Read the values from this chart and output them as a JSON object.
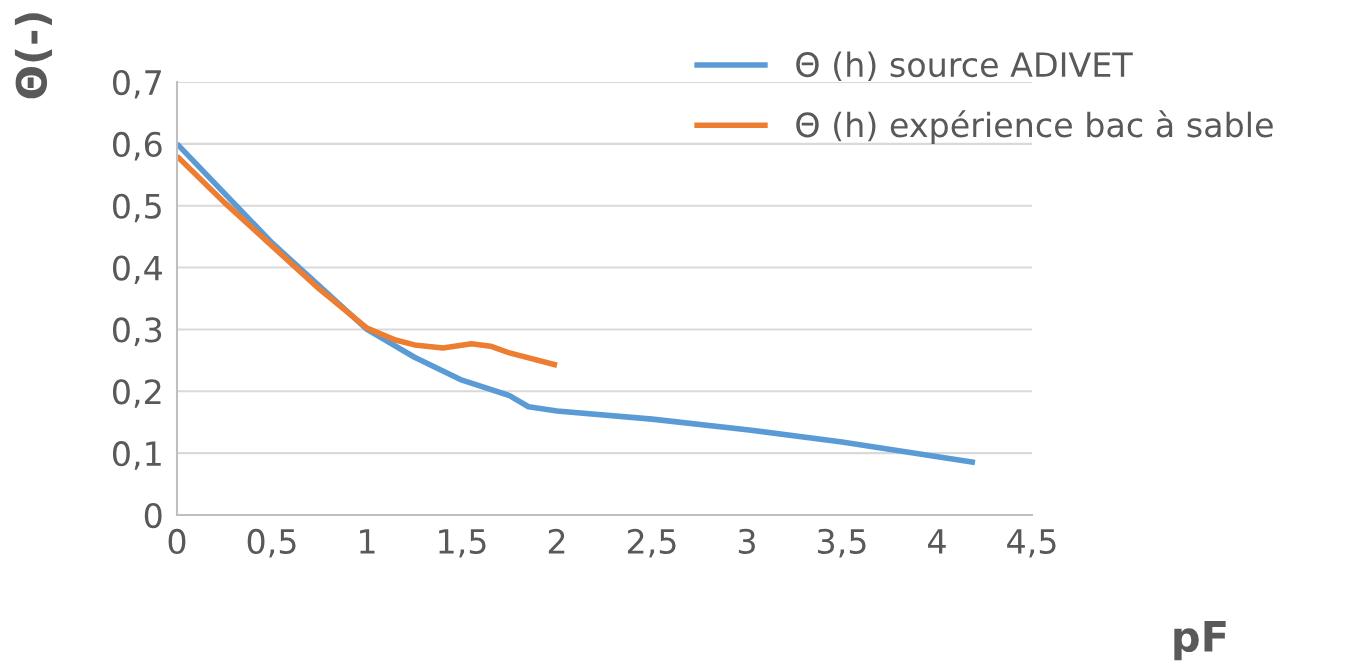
{
  "chart_data": {
    "type": "line",
    "xlabel": "pF",
    "ylabel": "Θ(-)",
    "xlim": [
      0,
      4.5
    ],
    "ylim": [
      0,
      0.7
    ],
    "xticks": [
      0,
      {
        "value": 0.5,
        "label": "0,5"
      },
      1,
      {
        "value": 1.5,
        "label": "1,5"
      },
      2,
      {
        "value": 2.5,
        "label": "2,5"
      },
      3,
      {
        "value": 3.5,
        "label": "3,5"
      },
      4,
      {
        "value": 4.5,
        "label": "4,5"
      }
    ],
    "yticks": [
      0,
      {
        "value": 0.1,
        "label": "0,1"
      },
      {
        "value": 0.2,
        "label": "0,2"
      },
      {
        "value": 0.3,
        "label": "0,3"
      },
      {
        "value": 0.4,
        "label": "0,4"
      },
      {
        "value": 0.5,
        "label": "0,5"
      },
      {
        "value": 0.6,
        "label": "0,6"
      },
      {
        "value": 0.7,
        "label": "0,7"
      }
    ],
    "grid": "y",
    "legend": "top right",
    "marker": "none",
    "line_style": "solid",
    "series": [
      {
        "name": "Θ (h) source ADIVET",
        "color": "#5b9bd5",
        "x": [
          0,
          0.25,
          0.5,
          0.75,
          1,
          1.25,
          1.5,
          1.75,
          1.85,
          2,
          2.5,
          3,
          3.5,
          4.2
        ],
        "values": [
          0.6,
          0.52,
          0.44,
          0.37,
          0.3,
          0.255,
          0.218,
          0.193,
          0.175,
          0.168,
          0.155,
          0.138,
          0.118,
          0.085
        ]
      },
      {
        "name": "Θ (h) expérience bac à sable",
        "color": "#ed7d31",
        "x": [
          0,
          0.25,
          0.5,
          0.75,
          1,
          1.15,
          1.25,
          1.4,
          1.55,
          1.65,
          1.75,
          2
        ],
        "values": [
          0.58,
          0.505,
          0.435,
          0.365,
          0.302,
          0.283,
          0.275,
          0.27,
          0.277,
          0.273,
          0.262,
          0.242
        ]
      }
    ]
  }
}
